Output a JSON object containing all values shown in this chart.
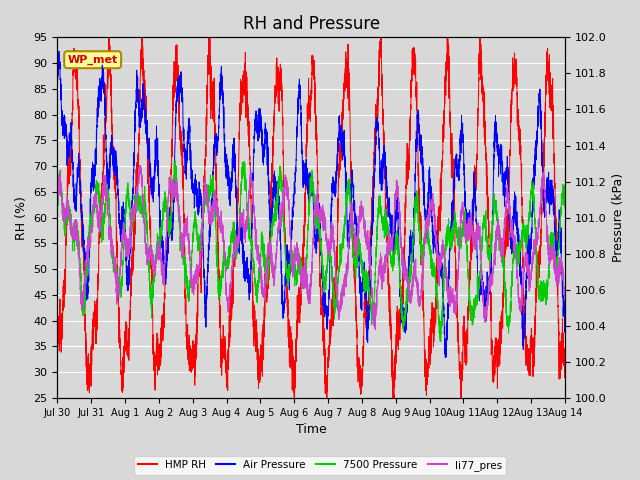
{
  "title": "RH and Pressure",
  "xlabel": "Time",
  "ylabel_left": "RH (%)",
  "ylabel_right": "Pressure (kPa)",
  "ylim_left": [
    25,
    95
  ],
  "ylim_right": [
    100.0,
    102.0
  ],
  "yticks_left": [
    25,
    30,
    35,
    40,
    45,
    50,
    55,
    60,
    65,
    70,
    75,
    80,
    85,
    90,
    95
  ],
  "yticks_right": [
    100.0,
    100.2,
    100.4,
    100.6,
    100.8,
    101.0,
    101.2,
    101.4,
    101.6,
    101.8,
    102.0
  ],
  "xtick_labels": [
    "Jul 30",
    "Jul 31",
    "Aug 1",
    "Aug 2",
    "Aug 3",
    "Aug 4",
    "Aug 5",
    "Aug 6",
    "Aug 7",
    "Aug 8",
    "Aug 9",
    "Aug 10",
    "Aug 11",
    "Aug 12",
    "Aug 13",
    "Aug 14"
  ],
  "annotation_text": "WP_met",
  "colors": {
    "HMP_RH": "#ff0000",
    "Air_Pressure": "#0000ff",
    "7500_Pressure": "#00cc00",
    "li77_pres": "#cc44cc"
  },
  "legend_labels": [
    "HMP RH",
    "Air Pressure",
    "7500 Pressure",
    "li77_pres"
  ],
  "bg_color": "#d8d8d8",
  "plot_bg_color": "#d8d8d8",
  "grid_color": "#ffffff",
  "title_fontsize": 12,
  "label_fontsize": 9,
  "tick_fontsize": 8
}
